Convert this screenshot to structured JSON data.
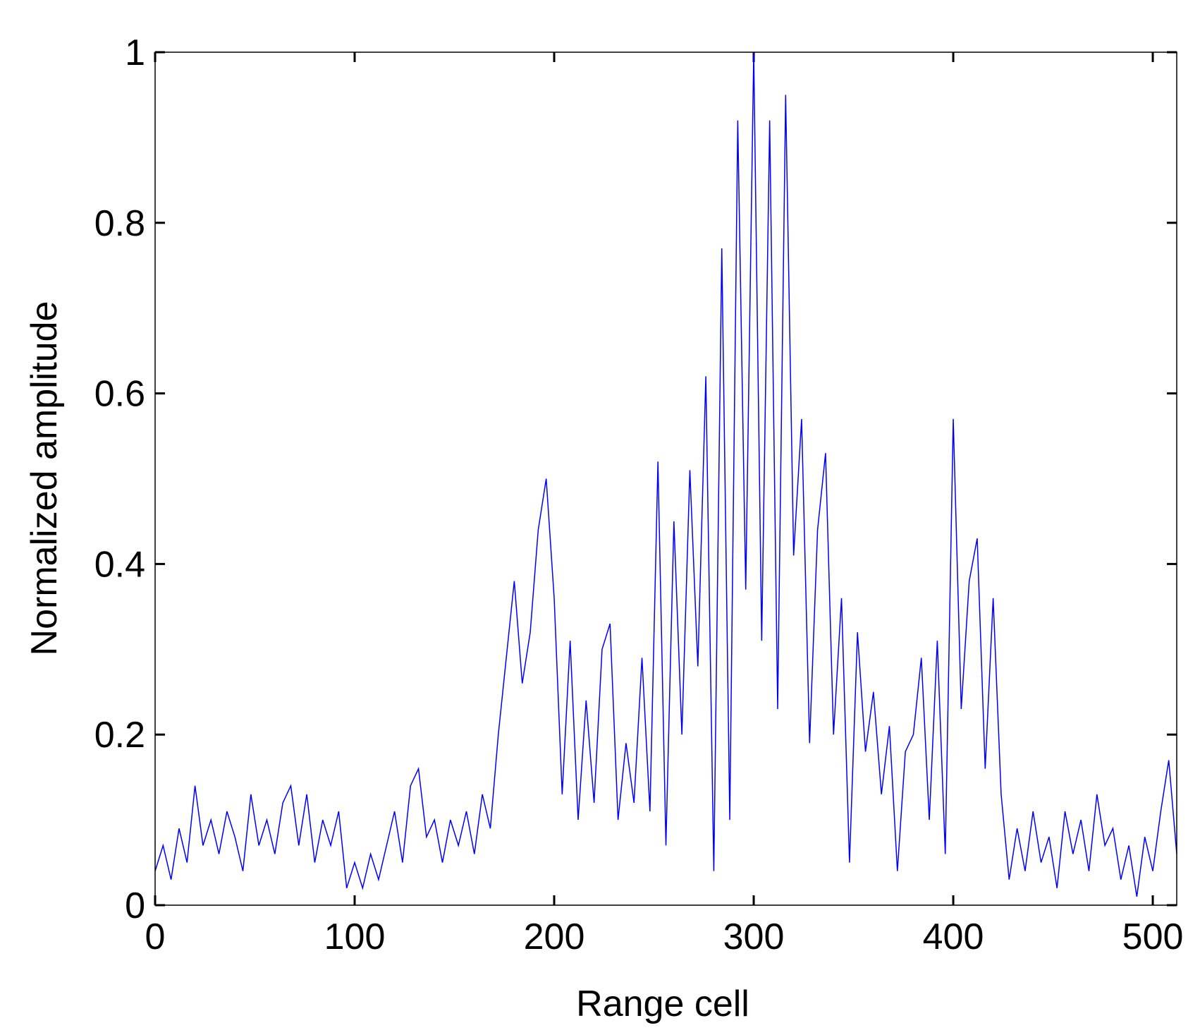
{
  "chart_data": {
    "type": "line",
    "xlabel": "Range cell",
    "ylabel": "Normalized amplitude",
    "xlim": [
      0,
      512
    ],
    "ylim": [
      0,
      1
    ],
    "xticks": [
      0,
      100,
      200,
      300,
      400,
      500
    ],
    "yticks": [
      0,
      0.2,
      0.4,
      0.6,
      0.8,
      1
    ],
    "x": [
      0,
      4,
      8,
      12,
      16,
      20,
      24,
      28,
      32,
      36,
      40,
      44,
      48,
      52,
      56,
      60,
      64,
      68,
      72,
      76,
      80,
      84,
      88,
      92,
      96,
      100,
      104,
      108,
      112,
      116,
      120,
      124,
      128,
      132,
      136,
      140,
      144,
      148,
      152,
      156,
      160,
      164,
      168,
      172,
      176,
      180,
      184,
      188,
      192,
      196,
      200,
      204,
      208,
      212,
      216,
      220,
      224,
      228,
      232,
      236,
      240,
      244,
      248,
      252,
      256,
      260,
      264,
      268,
      272,
      276,
      280,
      284,
      288,
      292,
      296,
      300,
      304,
      308,
      312,
      316,
      320,
      324,
      328,
      332,
      336,
      340,
      344,
      348,
      352,
      356,
      360,
      364,
      368,
      372,
      376,
      380,
      384,
      388,
      392,
      396,
      400,
      404,
      408,
      412,
      416,
      420,
      424,
      428,
      432,
      436,
      440,
      444,
      448,
      452,
      456,
      460,
      464,
      468,
      472,
      476,
      480,
      484,
      488,
      492,
      496,
      500,
      504,
      508,
      512
    ],
    "series": [
      {
        "color": "#0000ff",
        "values": [
          0.04,
          0.07,
          0.03,
          0.09,
          0.05,
          0.14,
          0.07,
          0.1,
          0.06,
          0.11,
          0.08,
          0.04,
          0.13,
          0.07,
          0.1,
          0.06,
          0.12,
          0.14,
          0.07,
          0.13,
          0.05,
          0.1,
          0.07,
          0.11,
          0.02,
          0.05,
          0.02,
          0.06,
          0.03,
          0.07,
          0.11,
          0.05,
          0.14,
          0.16,
          0.08,
          0.1,
          0.05,
          0.1,
          0.07,
          0.11,
          0.06,
          0.13,
          0.09,
          0.2,
          0.29,
          0.38,
          0.26,
          0.32,
          0.44,
          0.5,
          0.36,
          0.13,
          0.31,
          0.1,
          0.24,
          0.12,
          0.3,
          0.33,
          0.1,
          0.19,
          0.12,
          0.29,
          0.11,
          0.52,
          0.07,
          0.45,
          0.2,
          0.51,
          0.28,
          0.62,
          0.04,
          0.77,
          0.1,
          0.92,
          0.37,
          1.0,
          0.31,
          0.92,
          0.23,
          0.95,
          0.41,
          0.57,
          0.19,
          0.44,
          0.53,
          0.2,
          0.36,
          0.05,
          0.32,
          0.18,
          0.25,
          0.13,
          0.21,
          0.04,
          0.18,
          0.2,
          0.29,
          0.1,
          0.31,
          0.06,
          0.57,
          0.23,
          0.38,
          0.43,
          0.16,
          0.36,
          0.13,
          0.03,
          0.09,
          0.04,
          0.11,
          0.05,
          0.08,
          0.02,
          0.11,
          0.06,
          0.1,
          0.04,
          0.13,
          0.07,
          0.09,
          0.03,
          0.07,
          0.01,
          0.08,
          0.04,
          0.11,
          0.17,
          0.06
        ]
      }
    ]
  }
}
